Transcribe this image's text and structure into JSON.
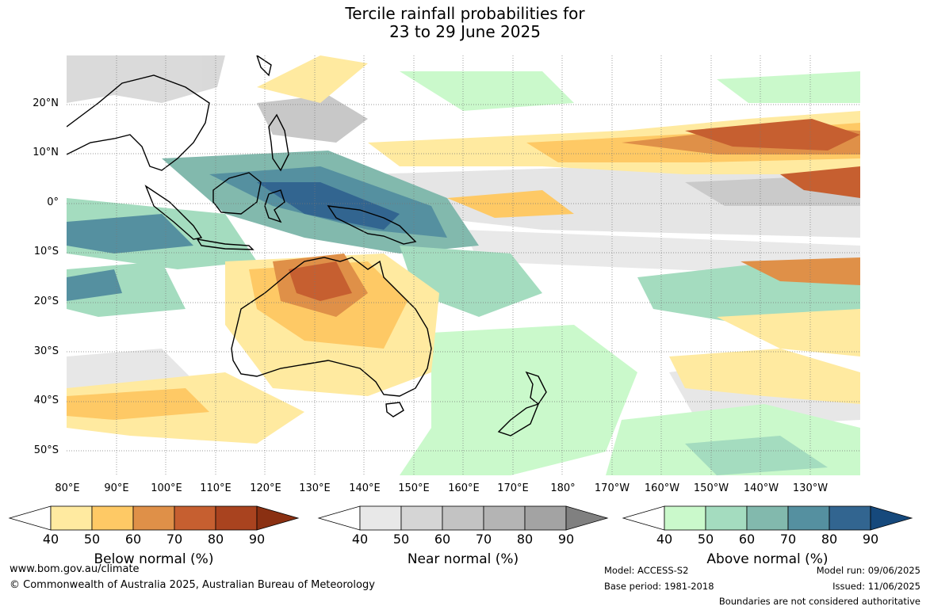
{
  "title": {
    "line1": "Tercile rainfall probabilities for",
    "line2": "23 to 29 June 2025"
  },
  "map": {
    "lat_labels": [
      "20°N",
      "10°N",
      "0°",
      "10°S",
      "20°S",
      "30°S",
      "40°S",
      "50°S"
    ],
    "lon_labels": [
      "80°E",
      "90°E",
      "100°E",
      "110°E",
      "120°E",
      "130°E",
      "140°E",
      "150°E",
      "160°E",
      "170°E",
      "180°",
      "170°W",
      "160°W",
      "150°W",
      "140°W",
      "130°W"
    ]
  },
  "legends": {
    "below": {
      "title": "Below normal (%)",
      "ticks": [
        "40",
        "50",
        "60",
        "70",
        "80",
        "90"
      ],
      "colors": [
        "#ffeaa0",
        "#fec965",
        "#df9048",
        "#c65f30",
        "#a9431f",
        "#8a3012"
      ]
    },
    "near": {
      "title": "Near normal (%)",
      "ticks": [
        "40",
        "50",
        "60",
        "70",
        "80",
        "90"
      ],
      "colors": [
        "#e8e8e8",
        "#d5d5d5",
        "#c3c3c3",
        "#b4b4b4",
        "#a3a3a3",
        "#808080"
      ]
    },
    "above": {
      "title": "Above normal (%)",
      "ticks": [
        "40",
        "50",
        "60",
        "70",
        "80",
        "90"
      ],
      "colors": [
        "#caf9cb",
        "#a4dcbf",
        "#82b9ad",
        "#5590a0",
        "#326590",
        "#16497c"
      ]
    }
  },
  "footer": {
    "url": "www.bom.gov.au/climate",
    "copyright": "© Commonwealth of Australia 2025, Australian Bureau of Meteorology",
    "model": "Model: ACCESS-S2",
    "base_period": "Base period: 1981-2018",
    "model_run": "Model run: 09/06/2025",
    "issued": "Issued: 11/06/2025",
    "disclaimer": "Boundaries are not considered authoritative"
  }
}
